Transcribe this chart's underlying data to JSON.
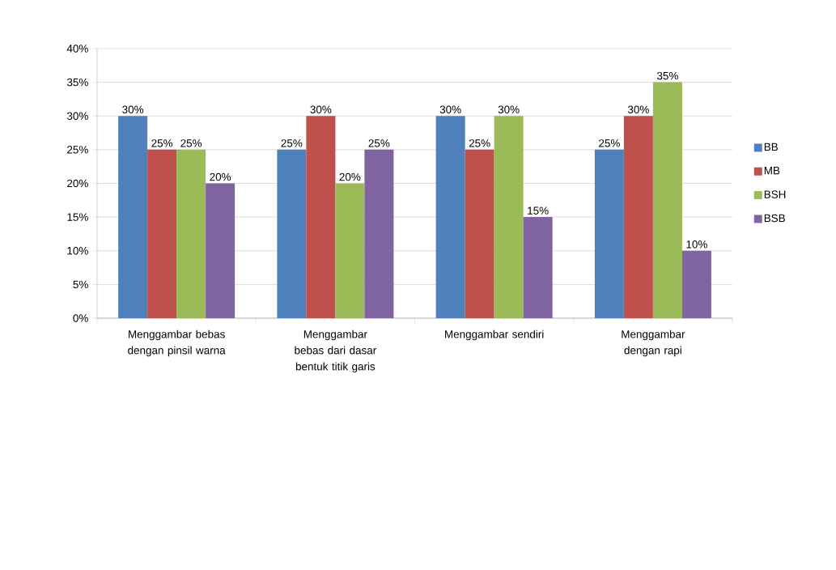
{
  "chart_data": {
    "type": "bar",
    "categories": [
      "Menggambar bebas dengan pinsil warna",
      "Menggambar bebas dari dasar bentuk titik garis",
      "Menggambar sendiri",
      "Menggambar dengan rapi"
    ],
    "series": [
      {
        "name": "BB",
        "color": "#4f81bd",
        "values": [
          30,
          25,
          30,
          25
        ],
        "value_labels": [
          "30%",
          "25%",
          "30%",
          "25%"
        ]
      },
      {
        "name": "MB",
        "color": "#c0504d",
        "values": [
          25,
          30,
          25,
          30
        ],
        "value_labels": [
          "25%",
          "30%",
          "25%",
          "30%"
        ]
      },
      {
        "name": "BSH",
        "color": "#9bbb59",
        "values": [
          25,
          20,
          30,
          35
        ],
        "value_labels": [
          "25%",
          "20%",
          "30%",
          "35%"
        ]
      },
      {
        "name": "BSB",
        "color": "#8064a2",
        "values": [
          20,
          25,
          15,
          10
        ],
        "value_labels": [
          "20%",
          "25%",
          "15%",
          "10%"
        ]
      }
    ],
    "ylim": [
      0,
      40
    ],
    "yticks": [
      {
        "value": 0,
        "label": "0%"
      },
      {
        "value": 5,
        "label": "5%"
      },
      {
        "value": 10,
        "label": "10%"
      },
      {
        "value": 15,
        "label": "15%"
      },
      {
        "value": 20,
        "label": "20%"
      },
      {
        "value": 25,
        "label": "25%"
      },
      {
        "value": 30,
        "label": "30%"
      },
      {
        "value": 35,
        "label": "35%"
      },
      {
        "value": 40,
        "label": "40%"
      }
    ],
    "grid": "y",
    "legend": "right"
  }
}
